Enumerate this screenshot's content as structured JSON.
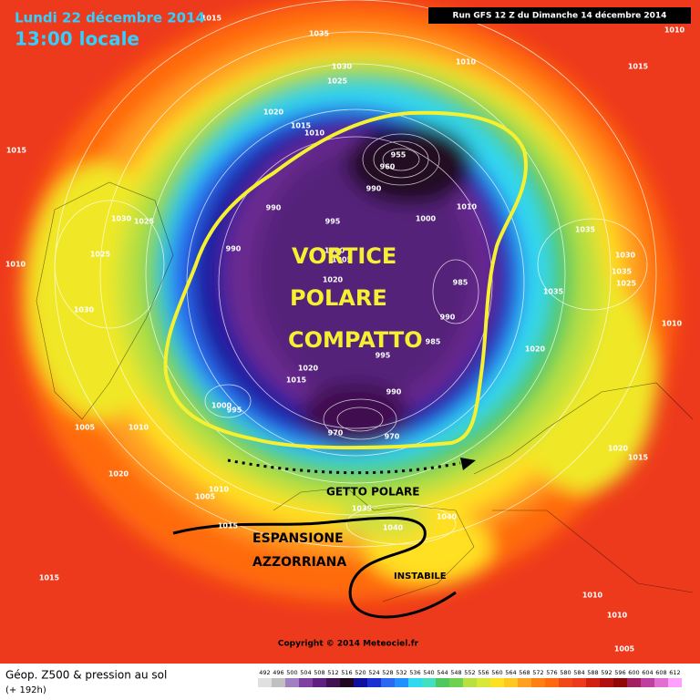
{
  "header": {
    "date": "Lundi 22 décembre 2014",
    "time": "13:00 locale",
    "run": "Run GFS 12 Z du Dimanche 14 décembre 2014"
  },
  "annotations": {
    "vortex": [
      "VORTICE",
      "POLARE",
      "COMPATTO"
    ],
    "jet": "GETTO POLARE",
    "azores": [
      "ESPANSIONE",
      "AZZORRIANA"
    ],
    "unstable": "INSTABILE"
  },
  "pressure_labels": [
    1015,
    1035,
    1030,
    1025,
    1010,
    1015,
    1010,
    1015,
    1020,
    1015,
    1010,
    990,
    990,
    995,
    1000,
    1010,
    1035,
    990,
    1030,
    1025,
    1025,
    1010,
    1030,
    1035,
    1025,
    1035,
    985,
    990,
    1020,
    1005,
    1000,
    1030,
    1010,
    1020,
    995,
    985,
    1020,
    1015,
    1000,
    995,
    990,
    970,
    970,
    1005,
    1010,
    1020,
    1015,
    1020,
    1010,
    1005,
    1015,
    1035,
    1040,
    1040,
    1015,
    1010,
    1010,
    1005,
    960,
    955
  ],
  "footer": {
    "title": "Géop. Z500 & pression au sol",
    "lead": "(+ 192h)",
    "copyright": "Copyright © 2014 Meteociel.fr"
  },
  "colorbar": [
    492,
    496,
    500,
    504,
    508,
    512,
    516,
    520,
    524,
    528,
    532,
    536,
    540,
    544,
    548,
    552,
    556,
    560,
    564,
    568,
    572,
    576,
    580,
    584,
    588,
    592,
    596,
    600,
    604,
    608,
    612
  ]
}
